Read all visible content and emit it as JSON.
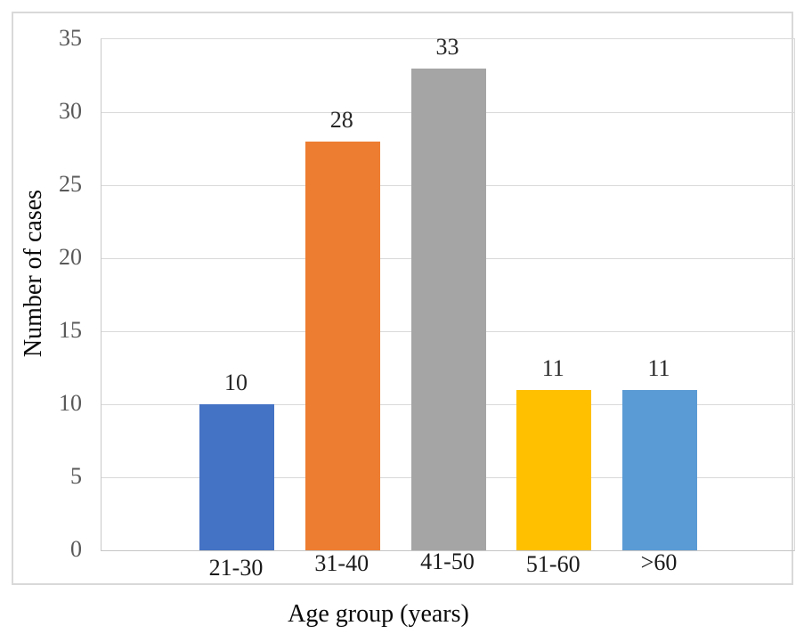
{
  "chart_data": {
    "type": "bar",
    "categories": [
      "21-30",
      "31-40",
      "41-50",
      "51-60",
      ">60"
    ],
    "values": [
      10,
      28,
      33,
      11,
      11
    ],
    "data_labels": [
      "10",
      "28",
      "33",
      "11",
      "11"
    ],
    "xlabel": "Age group (years)",
    "ylabel": "Number of cases",
    "yticks": [
      0,
      5,
      10,
      15,
      20,
      25,
      30,
      35
    ],
    "ylim": [
      0,
      35
    ],
    "grid": "horizontal",
    "legend": "none",
    "bar_colors": [
      "#4472C4",
      "#ED7D31",
      "#A5A5A5",
      "#FFC000",
      "#5B9BD5"
    ],
    "gridline_color": "#D9D9D9",
    "axis_line_color": "#C9C9C9",
    "tick_label_color": "#595959",
    "category_label_color": "#1a1a1a",
    "value_label_color": "#262626",
    "title_color": "#0a0a0a",
    "border_color": "#D9D9D9"
  }
}
